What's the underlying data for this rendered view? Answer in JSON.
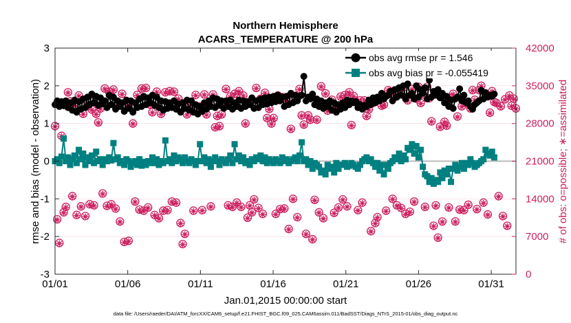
{
  "chart_data": {
    "type": "line",
    "title_line1": "Northern Hemisphere",
    "title_line2": "ACARS_TEMPERATURE @ 200 hPa",
    "xlabel": "Jan.01,2015 00:00:00 start",
    "ylabel_left": "rmse and bias (model - observation)",
    "ylabel_right": "# of obs: o=possible; ∗=assimilated",
    "footnote": "data file: /Users/raeder/DAI/ATM_forcXX/CAM6_setup/f.e21.FHIST_BGC.f09_025.CAM6assim.011/BadSST/Diags_NTrS_2015-01/obs_diag_output.nc",
    "xlim": [
      0,
      31.7
    ],
    "ylim_left": [
      -3,
      3
    ],
    "ylim_right": [
      0,
      42000
    ],
    "x_ticks": [
      0,
      5,
      10,
      15,
      20,
      25,
      30
    ],
    "x_tick_labels": [
      "01/01",
      "01/06",
      "01/11",
      "01/16",
      "01/21",
      "01/26",
      "01/31"
    ],
    "y_left_ticks": [
      -3,
      -2,
      -1,
      0,
      1,
      2,
      3
    ],
    "y_left_tick_labels": [
      "-3",
      "-2",
      "-1",
      "0",
      "1",
      "2",
      "3"
    ],
    "y_right_ticks": [
      0,
      7000,
      14000,
      21000,
      28000,
      35000,
      42000
    ],
    "y_right_tick_labels": [
      "0",
      "7000",
      "14000",
      "21000",
      "28000",
      "35000",
      "42000"
    ],
    "zero_line": 0,
    "legend": [
      {
        "name": "obs avg rmse pr = 1.546",
        "color": "#000000",
        "marker": "circle"
      },
      {
        "name": "obs avg bias pr = -0.055419",
        "color": "#008080",
        "marker": "square"
      }
    ],
    "colors": {
      "rmse": "#000000",
      "bias": "#008080",
      "counts": "#cc1f5f",
      "zero": "#bbbbbb"
    },
    "series": [
      {
        "name": "rmse",
        "axis": "left",
        "values": [
          1.5,
          1.6,
          1.45,
          1.58,
          1.47,
          1.6,
          1.42,
          1.55,
          1.35,
          1.62,
          1.3,
          1.58,
          1.38,
          1.65,
          1.42,
          1.7,
          1.5,
          1.78,
          1.55,
          1.72,
          1.48,
          1.68,
          1.52,
          1.6,
          1.42,
          1.75,
          1.5,
          1.7,
          1.38,
          1.6,
          1.45,
          1.55,
          1.32,
          1.62,
          1.4,
          1.6,
          1.3,
          1.55,
          1.42,
          1.65,
          1.45,
          1.72,
          1.5,
          1.68,
          1.55,
          1.75,
          1.48,
          1.7,
          1.42,
          1.6,
          1.35,
          1.58,
          1.4,
          1.55,
          1.42,
          1.6,
          1.38,
          1.52,
          1.3,
          1.55,
          1.4,
          1.62,
          1.35,
          1.6,
          1.3,
          1.5,
          1.25,
          1.45,
          1.32,
          1.55,
          1.38,
          1.6,
          1.45,
          1.68,
          1.42,
          1.65,
          1.48,
          1.6,
          1.4,
          1.6,
          1.45,
          1.62,
          1.38,
          1.55,
          1.45,
          1.62,
          1.4,
          1.6,
          1.45,
          1.58,
          1.5,
          1.68,
          1.4,
          1.6,
          1.42,
          1.65,
          1.5,
          1.68,
          1.52,
          1.7,
          1.55,
          1.72,
          1.58,
          1.75,
          1.6,
          1.7,
          1.45,
          1.72,
          1.5,
          1.8,
          1.55,
          1.75,
          1.6,
          1.72,
          1.75,
          2.25,
          1.6,
          1.7,
          1.65,
          1.78,
          1.5,
          1.65,
          1.45,
          1.6,
          1.4,
          1.55,
          1.45,
          1.6,
          1.35,
          1.55,
          1.3,
          1.5,
          1.38,
          1.55,
          1.42,
          1.62,
          1.5,
          1.6,
          1.55,
          1.58,
          1.42,
          1.5,
          1.38,
          1.48,
          1.45,
          1.62,
          1.5,
          1.68,
          1.55,
          1.7,
          1.6,
          1.8,
          1.65,
          1.72,
          1.75,
          1.85,
          1.6,
          1.9,
          1.7,
          1.95,
          1.75,
          2.0,
          1.65,
          2.05,
          1.75,
          1.8,
          1.65,
          2.0,
          1.7,
          1.9,
          1.8,
          1.95,
          1.65,
          2.15,
          1.7,
          1.85,
          1.75,
          1.9,
          1.68,
          1.8,
          1.55,
          1.72,
          1.45,
          1.62,
          1.4,
          1.65,
          1.7,
          1.92,
          1.6,
          1.75,
          1.55,
          1.6,
          1.45,
          1.38,
          1.5,
          1.55,
          1.6,
          1.88,
          1.65,
          1.82,
          1.7,
          1.75,
          1.72,
          1.78
        ]
      },
      {
        "name": "bias",
        "axis": "left",
        "values": [
          0.0,
          0.05,
          -0.05,
          0.12,
          0.6,
          0.0,
          0.1,
          -0.1,
          0.05,
          0.15,
          -0.05,
          0.3,
          0.05,
          0.2,
          -0.1,
          0.1,
          0.0,
          0.15,
          -0.05,
          0.25,
          0.0,
          0.05,
          -0.1,
          0.05,
          0.0,
          0.1,
          0.02,
          0.48,
          0.05,
          0.1,
          -0.05,
          0.0,
          -0.1,
          0.05,
          0.0,
          -0.15,
          -0.05,
          0.0,
          -0.1,
          0.05,
          -0.12,
          -0.02,
          -0.1,
          0.0,
          -0.05,
          0.1,
          -0.05,
          0.05,
          -0.1,
          0.0,
          -0.05,
          0.55,
          0.0,
          0.05,
          -0.05,
          0.15,
          0.0,
          0.1,
          0.05,
          -0.05,
          0.1,
          0.0,
          -0.05,
          0.05,
          0.0,
          -0.1,
          0.0,
          0.45,
          0.0,
          0.1,
          -0.05,
          0.05,
          -0.15,
          0.0,
          0.1,
          0.0,
          -0.1,
          0.05,
          0.0,
          -0.05,
          0.05,
          0.15,
          -0.05,
          0.45,
          0.05,
          0.15,
          0.0,
          0.1,
          -0.05,
          0.0,
          -0.1,
          0.05,
          0.0,
          0.1,
          0.05,
          0.15,
          0.0,
          0.1,
          -0.05,
          0.05,
          0.0,
          -0.05,
          0.05,
          0.0,
          -0.05,
          0.1,
          0.0,
          0.05,
          -0.05,
          0.0,
          0.05,
          0.1,
          0.0,
          0.15,
          0.5,
          0.0,
          0.05,
          -0.1,
          0.0,
          -0.2,
          -0.05,
          -0.1,
          -0.15,
          -0.3,
          -0.25,
          -0.35,
          -0.1,
          -0.2,
          -0.15,
          -0.3,
          -0.05,
          -0.2,
          -0.1,
          -0.1,
          -0.05,
          -0.15,
          -0.12,
          -0.05,
          -0.1,
          -0.15,
          -0.2,
          -0.1,
          0.0,
          0.05,
          0.1,
          0.0,
          0.05,
          -0.05,
          -0.15,
          -0.05,
          -0.25,
          -0.1,
          -0.35,
          -0.1,
          -0.2,
          -0.05,
          0.0,
          0.1,
          0.05,
          0.2,
          0.0,
          0.15,
          0.05,
          0.35,
          0.3,
          0.45,
          0.2,
          0.4,
          0.1,
          0.3,
          -0.15,
          -0.35,
          -0.4,
          -0.55,
          -0.45,
          -0.6,
          -0.5,
          -0.55,
          -0.3,
          -0.45,
          -0.25,
          -0.35,
          -0.2,
          -0.55,
          -0.2,
          -0.1,
          -0.25,
          -0.15,
          -0.05,
          -0.2,
          -0.05,
          -0.1,
          0.05,
          -0.05,
          -0.15,
          -0.1,
          -0.05,
          0.0,
          0.05,
          0.3,
          0.2,
          0.15,
          0.25,
          0.1
        ]
      },
      {
        "name": "obs possible",
        "axis": "right",
        "values": [
          27500,
          10200,
          5800,
          25700,
          11500,
          12500,
          33800,
          32100,
          14500,
          31800,
          11000,
          33200,
          12600,
          29800,
          10800,
          31300,
          13000,
          30600,
          12800,
          29800,
          28200,
          30800,
          15000,
          34500,
          12700,
          33900,
          13000,
          34300,
          12200,
          31900,
          9800,
          33500,
          6000,
          31000,
          6200,
          32000,
          28000,
          13500,
          33300,
          12000,
          34500,
          11800,
          34600,
          12400,
          31500,
          30100,
          11000,
          33900,
          10400,
          29800,
          11800,
          33800,
          11900,
          34000,
          13500,
          33900,
          13300,
          32600,
          9500,
          5600,
          7500,
          29700,
          31200,
          31600,
          11800,
          33300,
          31000,
          31200,
          11900,
          33400,
          29700,
          31900,
          12600,
          33400,
          27300,
          29400,
          27500,
          29700,
          31800,
          34400,
          12800,
          33000,
          12500,
          33500,
          13300,
          34000,
          12500,
          33200,
          28000,
          10500,
          12800,
          11500,
          13900,
          34600,
          12300,
          32600,
          11200,
          33700,
          29000,
          30700,
          28000,
          29000,
          11200,
          33200,
          12100,
          32900,
          12200,
          32700,
          8400,
          27000,
          14000,
          33000,
          10600,
          34400,
          29500,
          27800,
          7500,
          29500,
          28700,
          6500,
          13800,
          28700,
          11500,
          34900,
          10400,
          33600,
          30400,
          31200,
          32400,
          11400,
          30800,
          12400,
          33000,
          13900,
          33300,
          12600,
          33800,
          27700,
          33100,
          32100,
          11900,
          32300,
          13300,
          32300,
          29400,
          30600,
          8000,
          31800,
          9500,
          10600,
          32400,
          31300,
          31500,
          11800,
          34200,
          33900,
          14000,
          32900,
          12800,
          33500,
          12300,
          34700,
          11200,
          32300,
          11600,
          34400,
          13500,
          32600,
          34800,
          31800,
          33400,
          12500,
          34800,
          32700,
          28400,
          9000,
          12800,
          6800,
          27400,
          9800,
          28300,
          27600,
          12400,
          32800,
          33500,
          9800,
          29300,
          12000,
          31200,
          11900,
          31800,
          12900,
          30800,
          34200,
          32400,
          12100,
          34200,
          35000,
          13300,
          33300,
          11100,
          30000,
          34000,
          32000,
          31800,
          14500,
          31200,
          10800,
          32500,
          9000,
          33200,
          31300,
          32600,
          30800
        ]
      },
      {
        "name": "obs assimilated",
        "axis": "right",
        "values": [
          27400,
          10100,
          5700,
          25600,
          11400,
          12400,
          33700,
          32000,
          14400,
          31700,
          10900,
          33100,
          12500,
          29700,
          10700,
          31200,
          12900,
          30500,
          12700,
          29700,
          28100,
          30700,
          14900,
          34400,
          12600,
          33800,
          12900,
          34200,
          12100,
          31800,
          9700,
          33400,
          5900,
          30900,
          6100,
          31900,
          27900,
          13400,
          33200,
          11900,
          34400,
          11700,
          34500,
          12300,
          31400,
          30000,
          10900,
          33800,
          10300,
          29700,
          11700,
          33700,
          11800,
          33900,
          13400,
          33800,
          13200,
          32500,
          9400,
          5500,
          7400,
          29600,
          31100,
          31500,
          11700,
          33200,
          30900,
          31100,
          11800,
          33300,
          29600,
          31800,
          12500,
          33300,
          27200,
          29300,
          27400,
          29600,
          31700,
          34300,
          12700,
          32900,
          12400,
          33400,
          13200,
          33900,
          12400,
          33100,
          27900,
          10400,
          12700,
          11400,
          13800,
          34500,
          12200,
          32500,
          11100,
          33600,
          28900,
          30600,
          27900,
          28900,
          11100,
          33100,
          12000,
          32800,
          12100,
          32600,
          8300,
          26900,
          13900,
          32900,
          10500,
          34300,
          29400,
          27700,
          7400,
          29400,
          28600,
          6400,
          13700,
          28600,
          11400,
          34800,
          10300,
          33500,
          30300,
          31100,
          32300,
          11300,
          30700,
          12300,
          32900,
          13800,
          33200,
          12500,
          33700,
          27600,
          33000,
          32000,
          11800,
          32200,
          13200,
          32200,
          29300,
          30500,
          7900,
          31700,
          9400,
          10500,
          32300,
          31200,
          31400,
          11700,
          34100,
          33800,
          13900,
          32800,
          12700,
          33400,
          12200,
          34600,
          11100,
          32200,
          11500,
          34300,
          13400,
          32500,
          34700,
          31700,
          33300,
          12400,
          34700,
          32600,
          28300,
          8900,
          12700,
          6700,
          27300,
          9700,
          28200,
          27500,
          12300,
          32700,
          33400,
          9700,
          29200,
          11900,
          31100,
          11800,
          31700,
          12800,
          30700,
          34100,
          32300,
          12000,
          34100,
          34900,
          13200,
          33200,
          11000,
          29900,
          33900,
          31900,
          31700,
          14400,
          31100,
          10700,
          32400,
          8900,
          33100,
          31200,
          32500,
          30700
        ]
      }
    ],
    "x_start": 0,
    "x_step": 0.1488
  }
}
